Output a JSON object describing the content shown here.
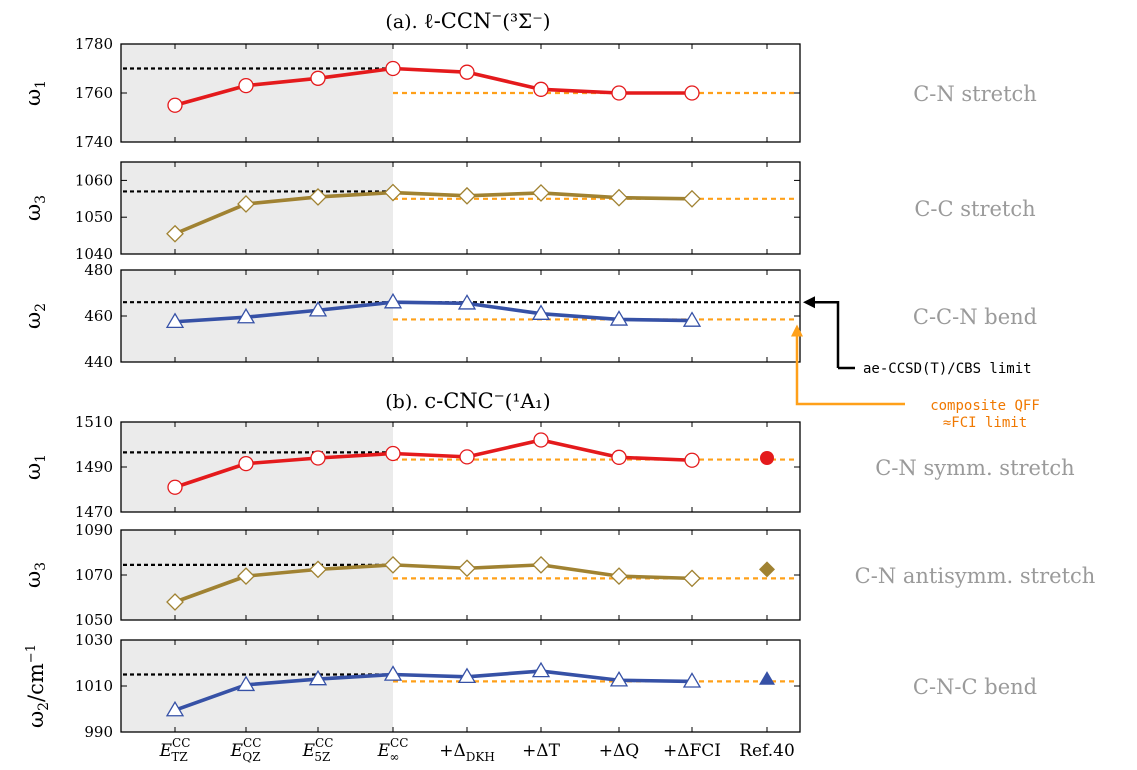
{
  "chart_data": {
    "type": "line",
    "x_categories": [
      {
        "base": "E",
        "sup": "CC",
        "sub": "TZ"
      },
      {
        "base": "E",
        "sup": "CC",
        "sub": "QZ"
      },
      {
        "base": "E",
        "sup": "CC",
        "sub": "5Z"
      },
      {
        "base": "E",
        "sup": "CC",
        "sub": "∞"
      },
      {
        "base": "+Δ",
        "sup": "",
        "sub": "DKH"
      },
      {
        "base": "+ΔT",
        "sup": "",
        "sub": ""
      },
      {
        "base": "+ΔQ",
        "sup": "",
        "sub": ""
      },
      {
        "base": "+ΔFCI",
        "sup": "",
        "sub": ""
      },
      {
        "base": "Ref.40",
        "sup": "",
        "sub": ""
      }
    ],
    "colors": {
      "red": "#e41a1c",
      "olive": "#a08232",
      "blue": "#3651a6",
      "orange": "#ffa019",
      "shade": "#ebebeb",
      "mode_text": "#9a9a9a"
    },
    "sections": [
      {
        "title_prefix": "(a). ",
        "title_main": "ℓ-CCN",
        "title_sup": "−",
        "title_state": "(³Σ⁻)"
      },
      {
        "title_prefix": "(b). ",
        "title_main": "c-CNC",
        "title_sup": "−",
        "title_state": "(¹A₁)"
      }
    ],
    "panels": [
      {
        "section": 0,
        "ylabel": "ω",
        "ylabel_sub": "1",
        "ylabel_unit": "",
        "mode": "C-N stretch",
        "ylim": [
          1740,
          1780
        ],
        "yticks": [
          1740,
          1760,
          1780
        ],
        "color": "red",
        "marker": "circle",
        "values": [
          1755,
          1763,
          1766,
          1770,
          1768.5,
          1761.5,
          1760,
          1760
        ],
        "cbs_limit": 1770,
        "fci_limit": 1760,
        "ref": null
      },
      {
        "section": 0,
        "ylabel": "ω",
        "ylabel_sub": "3",
        "ylabel_unit": "",
        "mode": "C-C stretch",
        "ylim": [
          1040,
          1065
        ],
        "yticks": [
          1040,
          1050,
          1060
        ],
        "color": "olive",
        "marker": "diamond",
        "values": [
          1045.5,
          1053.6,
          1055.5,
          1056.7,
          1055.8,
          1056.6,
          1055.3,
          1055
        ],
        "cbs_limit": 1057,
        "fci_limit": 1055,
        "ref": null
      },
      {
        "section": 0,
        "ylabel": "ω",
        "ylabel_sub": "2",
        "ylabel_unit": "",
        "mode": "C-C-N bend",
        "ylim": [
          440,
          480
        ],
        "yticks": [
          440,
          460,
          480
        ],
        "color": "blue",
        "marker": "triangle",
        "values": [
          457.5,
          459.5,
          462.5,
          466,
          465.5,
          461,
          458.5,
          458
        ],
        "cbs_limit": 466,
        "fci_limit": 458.5,
        "ref": null
      },
      {
        "section": 1,
        "ylabel": "ω",
        "ylabel_sub": "1",
        "ylabel_unit": "",
        "mode": "C-N symm. stretch",
        "ylim": [
          1470,
          1510
        ],
        "yticks": [
          1470,
          1490,
          1510
        ],
        "color": "red",
        "marker": "circle",
        "values": [
          1481,
          1491.5,
          1494,
          1496,
          1494.5,
          1502,
          1494.3,
          1493
        ],
        "cbs_limit": 1496.5,
        "fci_limit": 1493.3,
        "ref": 1494
      },
      {
        "section": 1,
        "ylabel": "ω",
        "ylabel_sub": "3",
        "ylabel_unit": "",
        "mode": "C-N antisymm. stretch",
        "ylim": [
          1050,
          1090
        ],
        "yticks": [
          1050,
          1070,
          1090
        ],
        "color": "olive",
        "marker": "diamond",
        "values": [
          1058,
          1069.5,
          1072.5,
          1074.5,
          1073,
          1074.5,
          1069.5,
          1068.5
        ],
        "cbs_limit": 1074.5,
        "fci_limit": 1068.5,
        "ref": 1072.5
      },
      {
        "section": 1,
        "ylabel": "ω",
        "ylabel_sub": "2",
        "ylabel_unit": "/cm",
        "ylabel_unit_sup": "−1",
        "mode": "C-N-C bend",
        "ylim": [
          990,
          1030
        ],
        "yticks": [
          990,
          1010,
          1030
        ],
        "color": "blue",
        "marker": "triangle",
        "values": [
          999.5,
          1010.5,
          1013,
          1015,
          1014,
          1016.5,
          1012.5,
          1012
        ],
        "cbs_limit": 1015,
        "fci_limit": 1012,
        "ref": 1013
      }
    ],
    "annotations": [
      {
        "key": "cbs",
        "lines": [
          "ae-CCSD(T)/CBS limit"
        ],
        "color": "#000000"
      },
      {
        "key": "fci",
        "lines": [
          "composite QFF",
          "≈FCI limit"
        ],
        "color": "#f07800"
      }
    ]
  }
}
